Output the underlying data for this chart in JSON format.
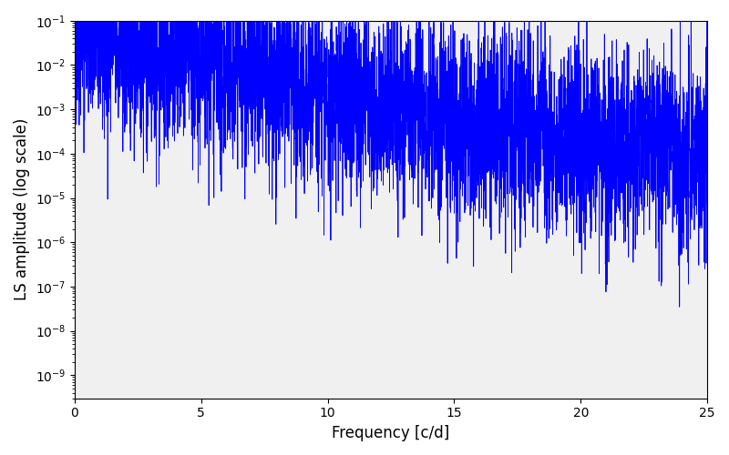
{
  "title": "",
  "xlabel": "Frequency [c/d]",
  "ylabel": "LS amplitude (log scale)",
  "xlim": [
    0,
    25
  ],
  "ylim": [
    3e-10,
    0.1
  ],
  "line_color": "#0000ff",
  "line_width": 0.6,
  "figsize": [
    8.0,
    5.0
  ],
  "dpi": 100,
  "freq_min": 0.0,
  "freq_max": 25.0,
  "n_points": 5000,
  "seed": 42
}
